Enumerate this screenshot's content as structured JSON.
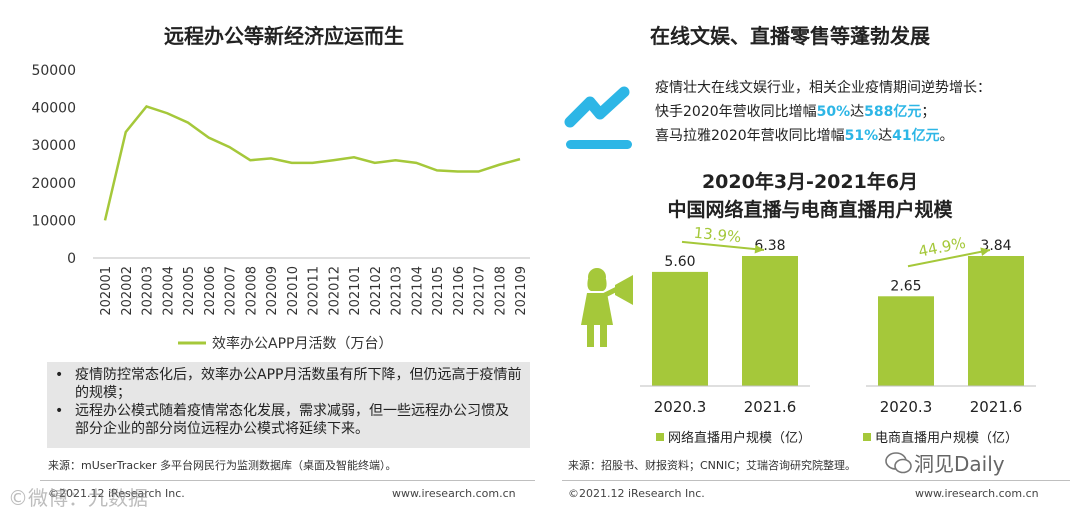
{
  "left": {
    "title": "远程办公等新经济应运而生",
    "bullets": [
      "疫情防控常态化后，效率办公APP月活数虽有所下降，但仍远高于疫情前的规模；",
      "远程办公模式随着疫情常态化发展，需求减弱，但一些远程办公习惯及部分企业的部分岗位远程办公模式将延续下来。"
    ],
    "source": "来源：mUserTracker 多平台网民行为监测数据库（桌面及智能终端）。",
    "copyright": "©2021.12 iResearch Inc.",
    "site": "www.iresearch.com.cn"
  },
  "right": {
    "title": "在线文娱、直播零售等蓬勃发展",
    "intro_line1": "疫情壮大在线文娱行业，相关企业疫情期间逆势增长：",
    "kuaishou": {
      "prefix": "快手2020年营收同比增幅",
      "rate": "50%",
      "mid": "达",
      "amount": "588亿元",
      "suffix": "；"
    },
    "ximalaya": {
      "prefix": "喜马拉雅2020年营收同比增幅",
      "rate": "51%",
      "mid": "达",
      "amount": "41亿元",
      "suffix": "。"
    },
    "subtitle_line1": "2020年3月-2021年6月",
    "subtitle_line2": "中国网络直播与电商直播用户规模",
    "source": "来源：招股书、财报资料；CNNIC；艾瑞咨询研究院整理。",
    "copyright": "©2021.12 iResearch Inc.",
    "site": "www.iresearch.com.cn"
  },
  "watermarks": {
    "left": "©微博：九数据",
    "right": "洞见Daily"
  },
  "colors": {
    "green": "#a5c83a",
    "blue": "#2db6e6",
    "text": "#333333"
  },
  "chart_data": [
    {
      "type": "line",
      "title": "",
      "xlabel": "",
      "ylabel": "",
      "ylim": [
        0,
        50000
      ],
      "yticks": [
        "0",
        "10000",
        "20000",
        "30000",
        "40000",
        "50000"
      ],
      "categories": [
        "202001",
        "202002",
        "202003",
        "202004",
        "202005",
        "202006",
        "202007",
        "202008",
        "202009",
        "202010",
        "202011",
        "202012",
        "202101",
        "202102",
        "202103",
        "202104",
        "202105",
        "202106",
        "202107",
        "202108",
        "202109"
      ],
      "series": [
        {
          "name": "效率办公APP月活数（万台）",
          "values": [
            10000,
            33500,
            40300,
            38500,
            36000,
            32000,
            29500,
            26000,
            26500,
            25300,
            25300,
            26000,
            26800,
            25300,
            26000,
            25300,
            23300,
            23000,
            23000,
            24800,
            26300
          ]
        }
      ],
      "legend": "bottom"
    },
    {
      "type": "bar",
      "categories": [
        "2020.3",
        "2021.6"
      ],
      "series": [
        {
          "name": "网络直播用户规模（亿）",
          "values": [
            5.6,
            6.38
          ]
        }
      ],
      "value_labels": [
        "5.60",
        "6.38"
      ],
      "growth": "13.9%",
      "ylim": [
        0,
        7
      ]
    },
    {
      "type": "bar",
      "categories": [
        "2020.3",
        "2021.6"
      ],
      "series": [
        {
          "name": "电商直播用户规模（亿）",
          "values": [
            2.65,
            3.84
          ]
        }
      ],
      "value_labels": [
        "2.65",
        "3.84"
      ],
      "growth": "44.9%",
      "ylim": [
        0,
        6
      ]
    }
  ]
}
